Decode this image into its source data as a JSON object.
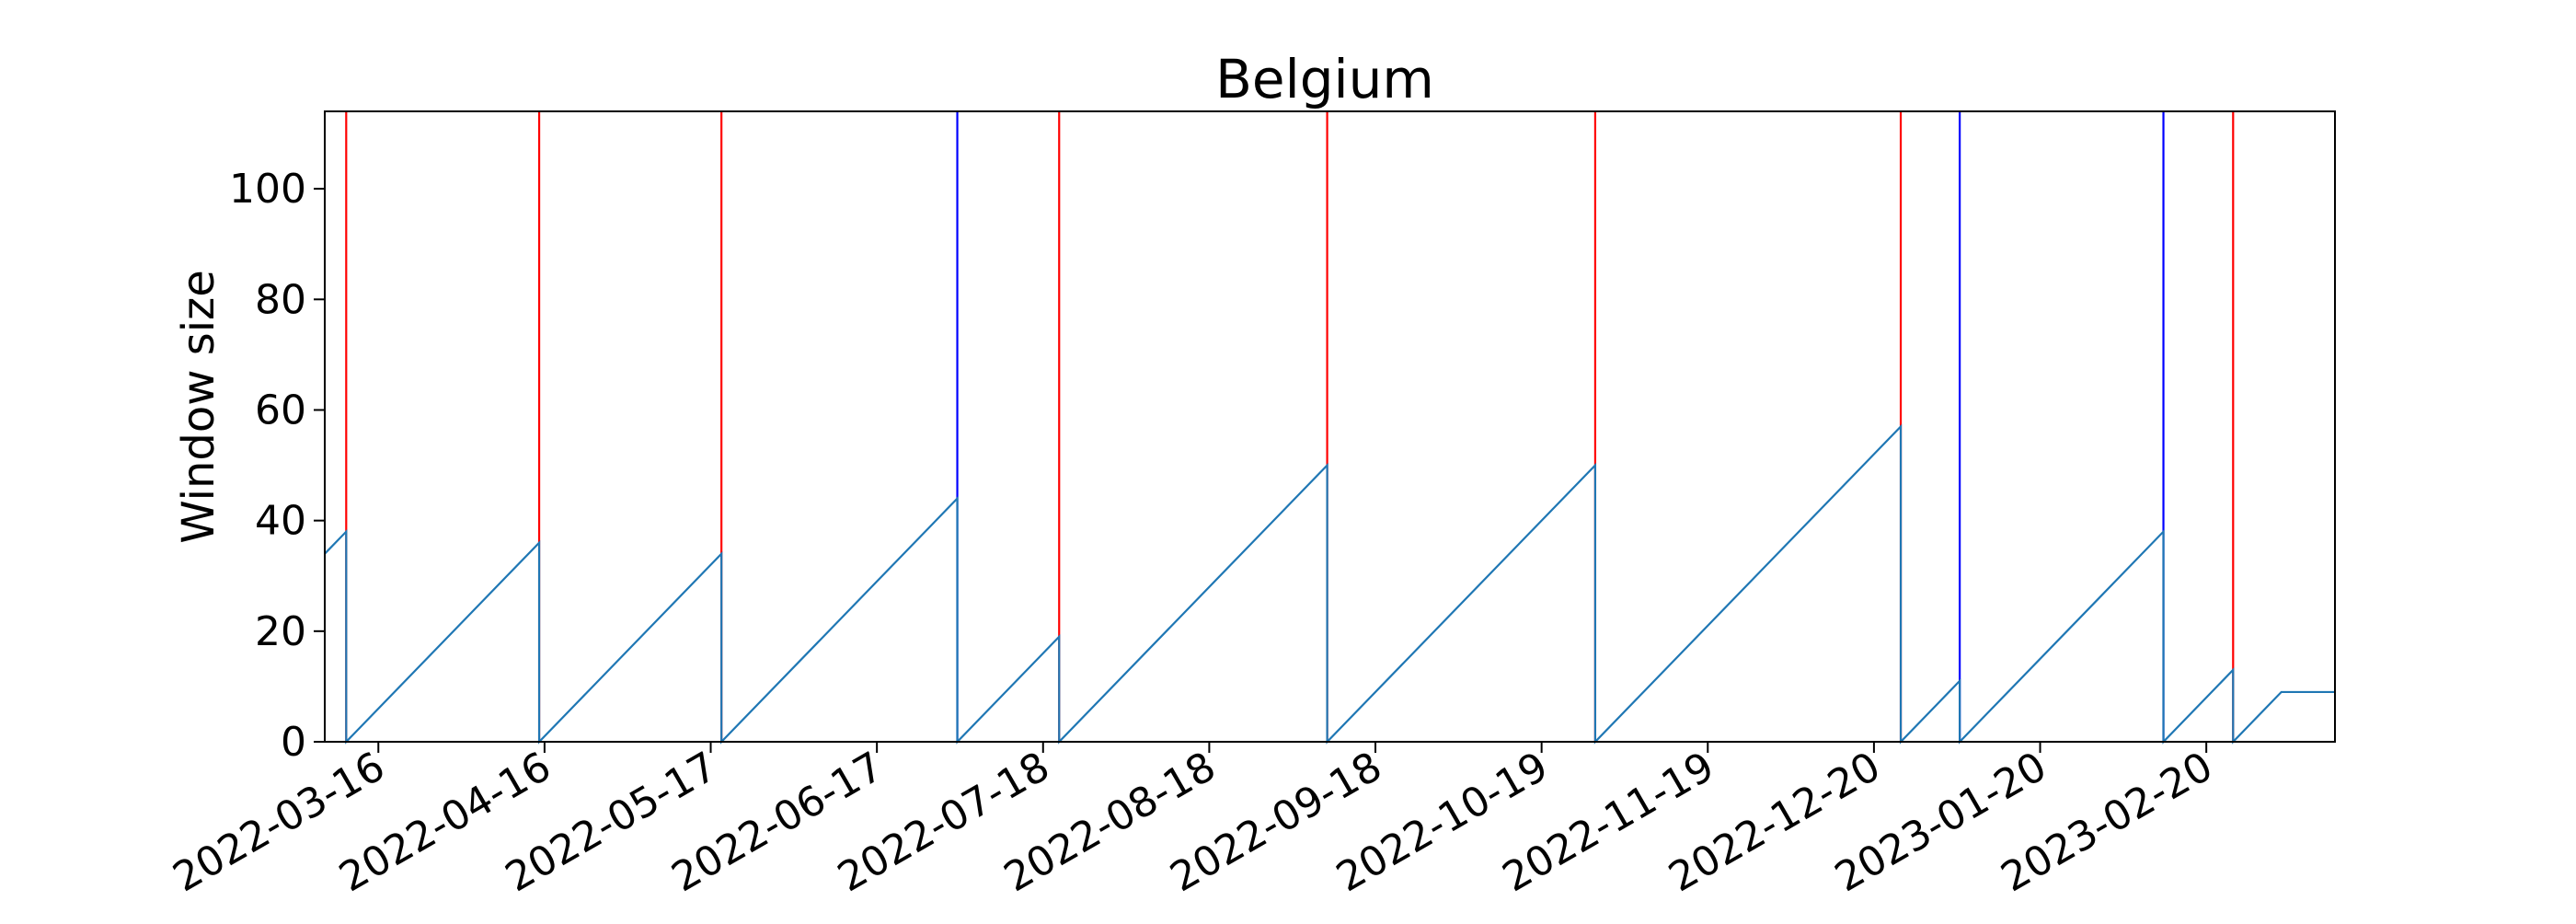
{
  "chart_data": {
    "type": "line",
    "title": "Belgium",
    "xlabel": "",
    "ylabel": "Window size",
    "xlim": [
      "2022-03-06",
      "2023-03-16"
    ],
    "ylim": [
      0,
      114
    ],
    "y_ticks": [
      0,
      20,
      40,
      60,
      80,
      100
    ],
    "x_ticks": [
      "2022-03-16",
      "2022-04-16",
      "2022-05-17",
      "2022-06-17",
      "2022-07-18",
      "2022-08-18",
      "2022-09-18",
      "2022-10-19",
      "2022-11-19",
      "2022-12-20",
      "2023-01-20",
      "2023-02-20"
    ],
    "grid": false,
    "colors": {
      "series": "#1f77b4",
      "red_events": "#ff0000",
      "blue_events": "#0000ff",
      "axes": "#000000"
    },
    "series": [
      {
        "x": [
          "2022-03-06",
          "2022-03-10",
          "2022-03-10",
          "2022-04-15",
          "2022-04-15",
          "2022-05-19",
          "2022-05-19",
          "2022-07-02",
          "2022-07-02",
          "2022-07-21",
          "2022-07-21",
          "2022-09-09",
          "2022-09-09",
          "2022-10-29",
          "2022-10-29",
          "2022-12-25",
          "2022-12-25",
          "2023-01-05",
          "2023-01-05",
          "2023-02-12",
          "2023-02-12",
          "2023-02-25",
          "2023-02-25",
          "2023-03-06",
          "2023-03-16"
        ],
        "y": [
          34,
          38,
          0,
          36,
          0,
          34,
          0,
          44,
          0,
          19,
          0,
          50,
          0,
          50,
          0,
          57,
          0,
          11,
          0,
          38,
          0,
          13,
          0,
          9,
          9
        ]
      }
    ],
    "event_lines": [
      {
        "date": "2022-03-10",
        "color": "red"
      },
      {
        "date": "2022-04-15",
        "color": "red"
      },
      {
        "date": "2022-05-19",
        "color": "red"
      },
      {
        "date": "2022-07-02",
        "color": "blue"
      },
      {
        "date": "2022-07-21",
        "color": "red"
      },
      {
        "date": "2022-09-09",
        "color": "red"
      },
      {
        "date": "2022-10-29",
        "color": "red"
      },
      {
        "date": "2022-12-25",
        "color": "red"
      },
      {
        "date": "2023-01-05",
        "color": "blue"
      },
      {
        "date": "2023-02-12",
        "color": "blue"
      },
      {
        "date": "2023-02-25",
        "color": "red"
      }
    ]
  }
}
